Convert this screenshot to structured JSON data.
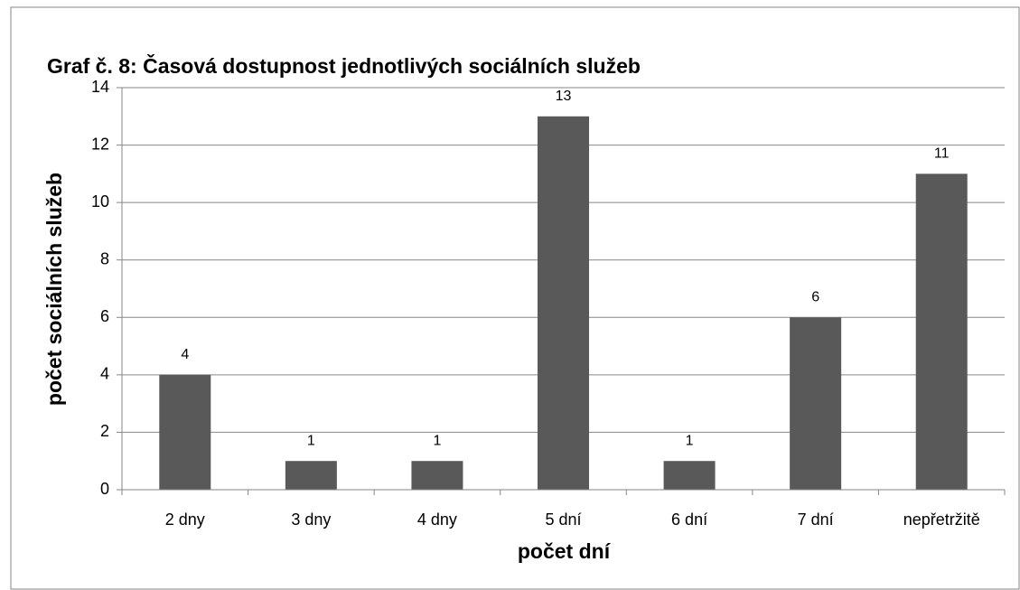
{
  "chart_data": {
    "type": "bar",
    "title": "Graf č. 8: Časová dostupnost jednotlivých sociálních služeb",
    "xlabel": "počet dní",
    "ylabel": "počet sociálních služeb",
    "categories": [
      "2 dny",
      "3 dny",
      "4 dny",
      "5 dní",
      "6 dní",
      "7 dní",
      "nepřetržitě"
    ],
    "values": [
      4,
      1,
      1,
      13,
      1,
      6,
      11
    ],
    "color": "#595959",
    "ylim": [
      0,
      14
    ],
    "yticks": [
      0,
      2,
      4,
      6,
      8,
      10,
      12,
      14
    ],
    "grid": true
  }
}
